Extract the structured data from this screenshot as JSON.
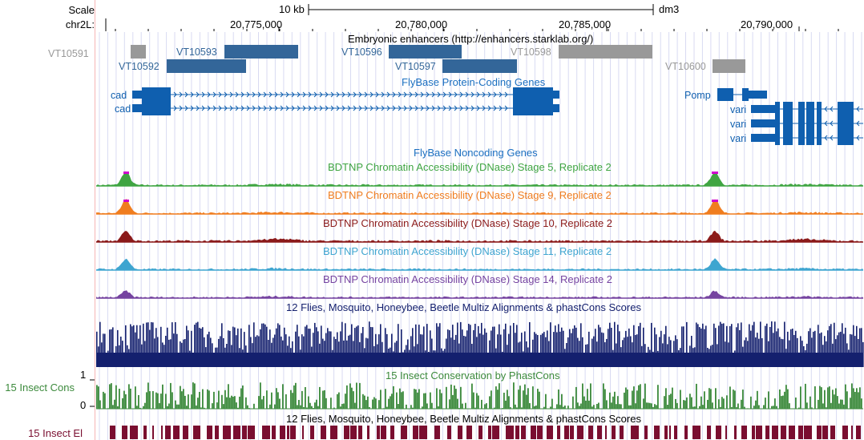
{
  "ruler": {
    "scale_label": "Scale",
    "scale_value": "10 kb",
    "assembly": "dm3",
    "chrom_label": "chr2L:",
    "ticks": [
      "20,775,000",
      "20,780,000",
      "20,785,000",
      "20,790,000"
    ]
  },
  "tracks": {
    "enhancers": {
      "title": "Embryonic enhancers (http://enhancers.starklab.org/)",
      "items": [
        "VT10591",
        "VT10592",
        "VT10593",
        "VT10596",
        "VT10597",
        "VT10598",
        "VT10600"
      ],
      "colors": {
        "active": "#336699",
        "inactive": "#999999"
      }
    },
    "genes": {
      "title": "FlyBase Protein-Coding Genes",
      "names": [
        "cad",
        "cad",
        "Pomp",
        "vari",
        "vari",
        "vari"
      ],
      "color": "#0f5faf"
    },
    "noncoding": {
      "title": "FlyBase Noncoding Genes"
    },
    "dnase": [
      {
        "title": "BDTNP Chromatin Accessibility (DNase) Stage 5, Replicate 2",
        "color": "#3fa542"
      },
      {
        "title": "BDTNP Chromatin Accessibility (DNase) Stage 9, Replicate 2",
        "color": "#f07d1f"
      },
      {
        "title": "BDTNP Chromatin Accessibility (DNase) Stage 10, Replicate 2",
        "color": "#8b1a1a"
      },
      {
        "title": "BDTNP Chromatin Accessibility (DNase) Stage 11, Replicate 2",
        "color": "#3ea5d0"
      },
      {
        "title": "BDTNP Chromatin Accessibility (DNase) Stage 14, Replicate 2",
        "color": "#7543a0"
      }
    ],
    "multiz": {
      "title": "12 Flies, Mosquito, Honeybee, Beetle Multiz Alignments & phastCons Scores",
      "color": "#14206e"
    },
    "phastcons": {
      "title": "15 Insect Conservation by PhastCons",
      "side_label": "15 Insect Cons",
      "ymax": "1",
      "ymin": "0",
      "color": "#3c8a3c"
    },
    "elements": {
      "title": "12 Flies, Mosquito, Honeybee, Beetle Multiz Alignments & phastCons Scores",
      "side_label": "15 Insect El",
      "color": "#7a0e30"
    }
  }
}
